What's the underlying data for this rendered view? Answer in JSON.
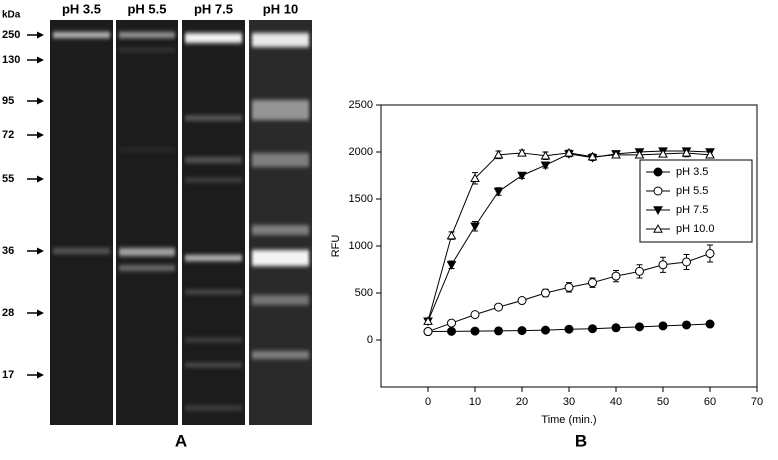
{
  "gel": {
    "lanes": [
      "pH 3.5",
      "pH 5.5",
      "pH 7.5",
      "pH 10"
    ],
    "unit": "kDa",
    "markers": [
      250,
      130,
      95,
      72,
      55,
      36,
      28,
      17
    ],
    "panel_label": "A"
  },
  "chart_data": {
    "type": "line",
    "panel_label": "B",
    "xlabel": "Time (min.)",
    "ylabel": "RFU",
    "x": [
      0,
      5,
      10,
      15,
      20,
      25,
      30,
      35,
      40,
      45,
      50,
      55,
      60
    ],
    "xlim": [
      -10,
      70
    ],
    "xticks": [
      0,
      10,
      20,
      30,
      40,
      50,
      60,
      70
    ],
    "ylim": [
      -500,
      2500
    ],
    "yticks": [
      0,
      500,
      1000,
      1500,
      2000,
      2500
    ],
    "legend": "upper right",
    "series": [
      {
        "name": "pH 3.5",
        "color": "#000000",
        "marker": "circle",
        "filled": true,
        "values": [
          90,
          92,
          95,
          97,
          100,
          105,
          115,
          120,
          130,
          140,
          150,
          160,
          170
        ],
        "errors": [
          10,
          10,
          10,
          10,
          10,
          10,
          10,
          10,
          10,
          10,
          10,
          10,
          10
        ]
      },
      {
        "name": "pH 5.5",
        "color": "#000000",
        "marker": "circle",
        "filled": false,
        "values": [
          90,
          180,
          270,
          350,
          420,
          500,
          560,
          610,
          680,
          730,
          800,
          830,
          920
        ],
        "errors": [
          10,
          15,
          20,
          30,
          30,
          40,
          50,
          50,
          60,
          70,
          80,
          80,
          90
        ]
      },
      {
        "name": "pH 7.5",
        "color": "#000000",
        "marker": "triangle-down",
        "filled": true,
        "values": [
          200,
          800,
          1210,
          1580,
          1750,
          1860,
          1980,
          1940,
          1980,
          2000,
          2010,
          2010,
          2000
        ],
        "errors": [
          20,
          40,
          50,
          40,
          30,
          30,
          30,
          30,
          20,
          30,
          30,
          30,
          30
        ]
      },
      {
        "name": "pH 10.0",
        "color": "#000000",
        "marker": "triangle-up",
        "filled": false,
        "values": [
          200,
          1110,
          1720,
          1970,
          1990,
          1960,
          1990,
          1950,
          1970,
          1970,
          1980,
          1990,
          1970
        ],
        "errors": [
          20,
          40,
          60,
          40,
          30,
          40,
          30,
          30,
          30,
          30,
          30,
          40,
          30
        ]
      }
    ]
  }
}
